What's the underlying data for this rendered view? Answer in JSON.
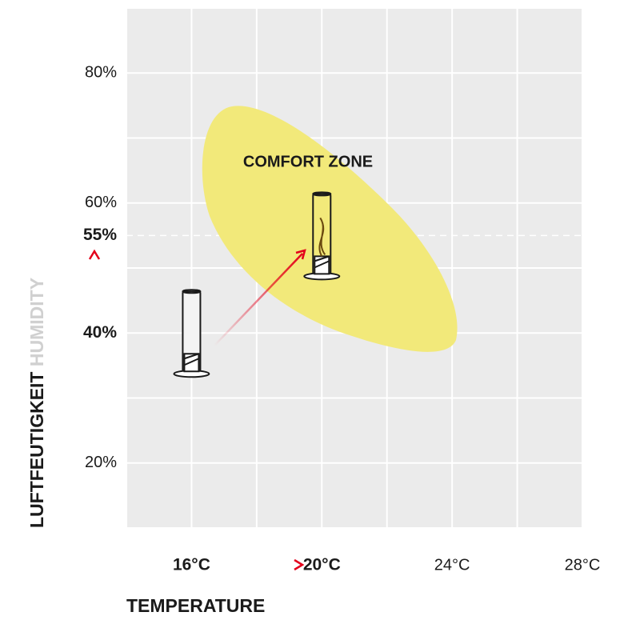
{
  "chart_data": {
    "type": "comfort",
    "annotation": "COMFORT ZONE",
    "xlabel": "TEMPERATURE",
    "ylabel": [
      "LUFTFEUTIGKEIT",
      "HUMIDITY"
    ],
    "xlim": [
      14,
      28
    ],
    "ylim": [
      10,
      90
    ],
    "xgrid": [
      14,
      16,
      18,
      20,
      22,
      24,
      26,
      28
    ],
    "ygrid": [
      10,
      20,
      30,
      40,
      50,
      60,
      70,
      80,
      90
    ],
    "xticks": [
      {
        "value": 16,
        "label": "16°C",
        "bold": true
      },
      {
        "value": 20,
        "label": "20°C",
        "bold": true
      },
      {
        "value": 24,
        "label": "24°C"
      },
      {
        "value": 28,
        "label": "28°C"
      }
    ],
    "yticks": [
      {
        "value": 80,
        "label": "80%"
      },
      {
        "value": 60,
        "label": "60%"
      },
      {
        "value": 55,
        "label": "55%",
        "bold": true
      },
      {
        "value": 40,
        "label": "40%",
        "bold": true
      },
      {
        "value": 20,
        "label": "20%"
      }
    ],
    "reference_y": 55,
    "points": {
      "x": [
        16,
        20
      ],
      "y": [
        40,
        55
      ]
    }
  }
}
